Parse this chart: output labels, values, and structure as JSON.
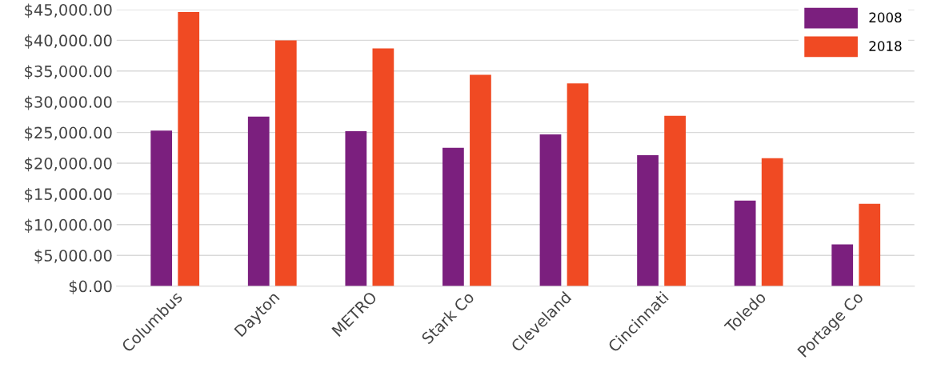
{
  "chart_data": {
    "type": "bar",
    "categories": [
      "Columbus",
      "Dayton",
      "METRO",
      "Stark Co",
      "Cleveland",
      "Cincinnati",
      "Toledo",
      "Portage Co"
    ],
    "series": [
      {
        "name": "2008",
        "color": "#7b1f7e",
        "values": [
          25300,
          27600,
          25200,
          22500,
          24700,
          21300,
          13900,
          6800
        ]
      },
      {
        "name": "2018",
        "color": "#f04a23",
        "values": [
          44600,
          40000,
          38700,
          34400,
          33000,
          27700,
          20800,
          13400
        ]
      }
    ],
    "ylim": [
      0,
      45000
    ],
    "yticks": [
      {
        "value": 0,
        "label": "$0.00"
      },
      {
        "value": 5000,
        "label": "$5,000.00"
      },
      {
        "value": 10000,
        "label": "$10,000.00"
      },
      {
        "value": 15000,
        "label": "$15,000.00"
      },
      {
        "value": 20000,
        "label": "$20,000.00"
      },
      {
        "value": 25000,
        "label": "$25,000.00"
      },
      {
        "value": 30000,
        "label": "$30,000.00"
      },
      {
        "value": 35000,
        "label": "$35,000.00"
      },
      {
        "value": 40000,
        "label": "$40,000.00"
      },
      {
        "value": 45000,
        "label": "$45,000.00"
      }
    ],
    "grid": "y",
    "legend": "top right"
  }
}
